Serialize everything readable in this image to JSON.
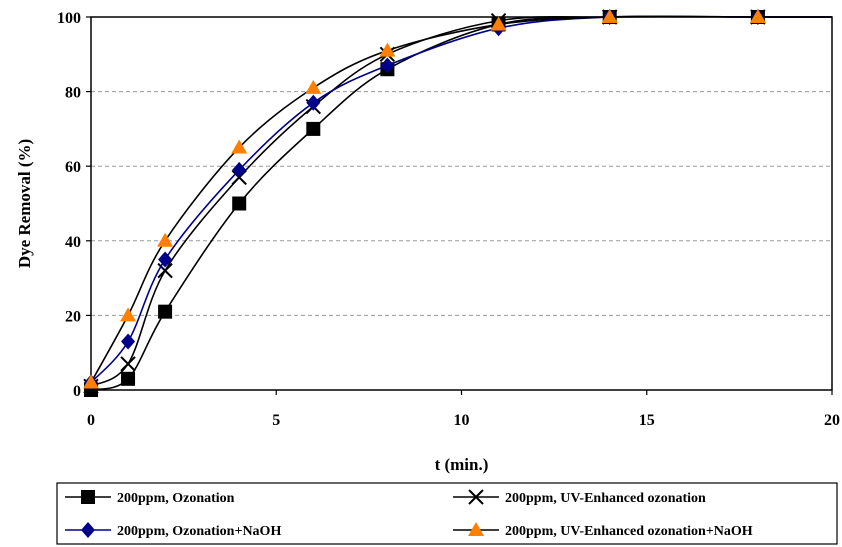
{
  "chart_data": {
    "type": "line",
    "xlabel": "t (min.)",
    "ylabel": "Dye Removal (%)",
    "xlim": [
      0,
      20
    ],
    "ylim": [
      0,
      100
    ],
    "xticks": [
      0,
      5,
      10,
      15,
      20
    ],
    "yticks": [
      0,
      20,
      40,
      60,
      80,
      100
    ],
    "xtick_labels": [
      "0",
      "5",
      "10",
      "15",
      "20"
    ],
    "ytick_labels": [
      "0",
      "20",
      "40",
      "60",
      "80",
      "100"
    ],
    "grid": "horizontal dashed",
    "legend_position": "bottom",
    "series": [
      {
        "name": "200ppm, Ozonation",
        "marker": "square",
        "color": "#000000",
        "x": [
          0,
          1,
          2,
          4,
          6,
          8,
          11,
          14,
          18
        ],
        "y": [
          0,
          3,
          21,
          50,
          70,
          86,
          98,
          100,
          100
        ]
      },
      {
        "name": "200ppm, UV-Enhanced ozonation",
        "marker": "x",
        "color": "#000000",
        "x": [
          0,
          1,
          2,
          4,
          6,
          8,
          11,
          14,
          18
        ],
        "y": [
          1,
          7,
          32,
          57,
          76,
          90,
          99,
          100,
          100
        ]
      },
      {
        "name": "200ppm, Ozonation+NaOH",
        "marker": "diamond",
        "color": "#00008B",
        "x": [
          0,
          1,
          2,
          4,
          6,
          8,
          11,
          14,
          18
        ],
        "y": [
          2,
          13,
          35,
          59,
          77,
          87,
          97,
          100,
          100
        ]
      },
      {
        "name": "200ppm, UV-Enhanced ozonation+NaOH",
        "marker": "triangle",
        "color": "#FF8000",
        "x": [
          0,
          1,
          2,
          4,
          6,
          8,
          11,
          14,
          18
        ],
        "y": [
          2,
          20,
          40,
          65,
          81,
          91,
          98,
          100,
          100
        ]
      }
    ]
  }
}
